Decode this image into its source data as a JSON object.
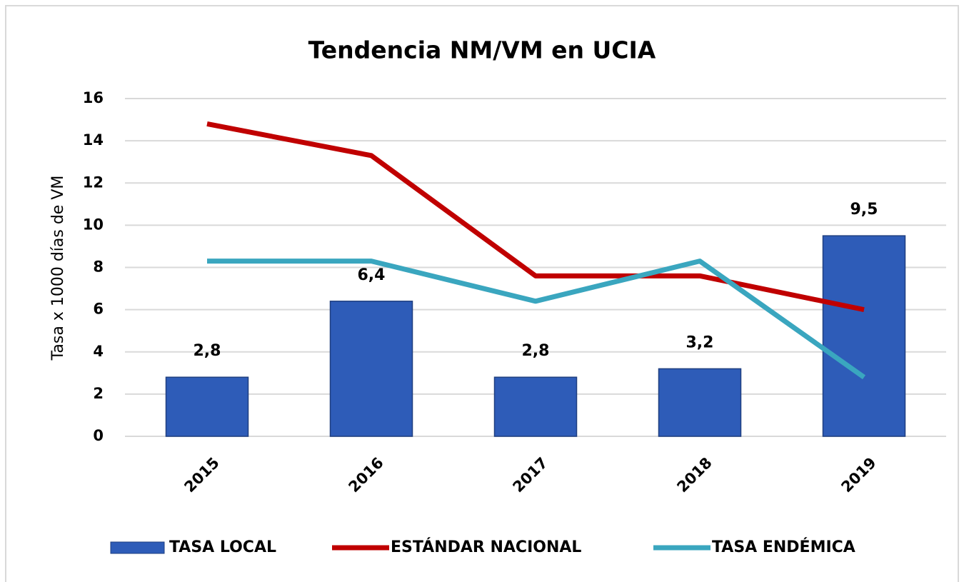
{
  "chart_data": {
    "type": "bar",
    "title": "Tendencia NM/VM en UCIA",
    "ylabel": "Tasa x 1000 días de VM",
    "categories": [
      "2015",
      "2016",
      "2017",
      "2018",
      "2019"
    ],
    "series": [
      {
        "name": "TASA LOCAL",
        "type": "bar",
        "color": "#2e5cb8",
        "values": [
          2.8,
          6.4,
          2.8,
          3.2,
          9.5
        ],
        "value_labels": [
          "2,8",
          "6,4",
          "2,8",
          "3,2",
          "9,5"
        ]
      },
      {
        "name": "ESTÁNDAR NACIONAL",
        "type": "line",
        "color": "#c00000",
        "values": [
          14.8,
          13.3,
          7.6,
          7.6,
          6.0
        ]
      },
      {
        "name": "TASA ENDÉMICA",
        "type": "line",
        "color": "#3aa6bf",
        "values": [
          8.3,
          8.3,
          6.4,
          8.3,
          2.8
        ]
      }
    ],
    "ylim": [
      0,
      16
    ],
    "yticks": [
      0,
      2,
      4,
      6,
      8,
      10,
      12,
      14,
      16
    ],
    "grid": true,
    "legend": "bottom"
  }
}
